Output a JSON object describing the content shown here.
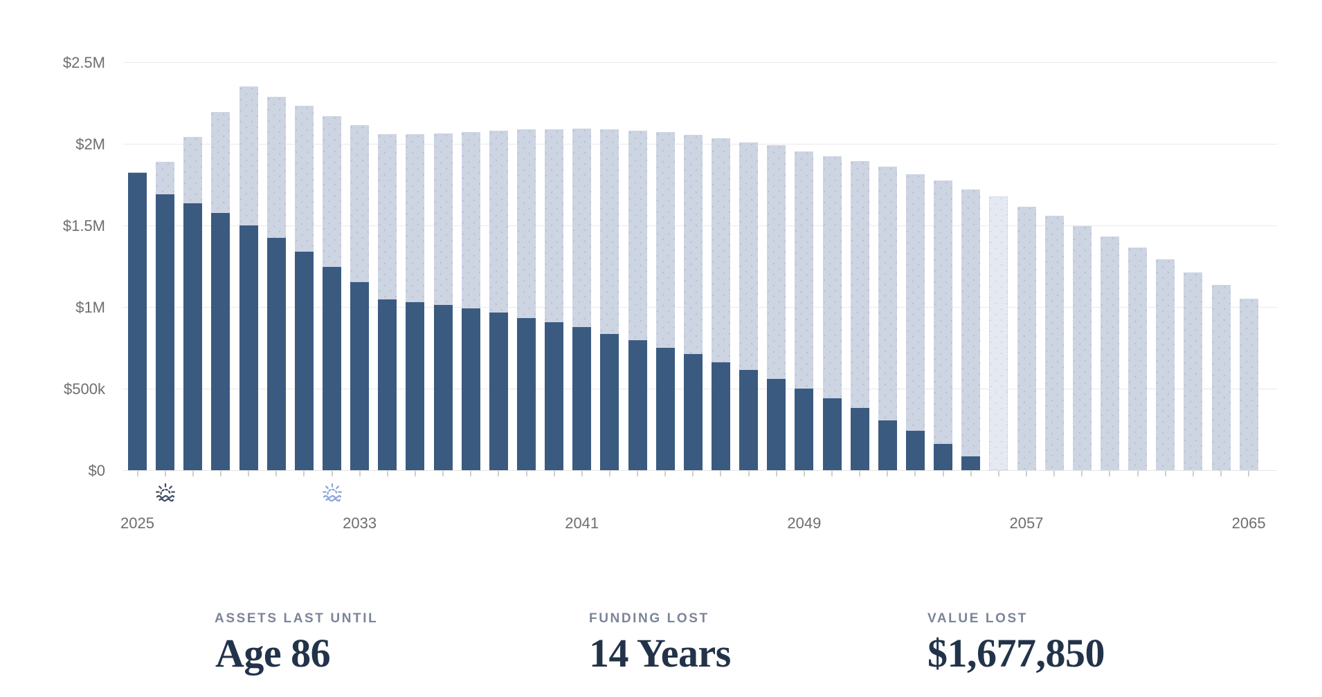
{
  "chart": {
    "y_axis": {
      "ticks": [
        {
          "label": "$2.5M",
          "value": 2500000
        },
        {
          "label": "$2M",
          "value": 2000000
        },
        {
          "label": "$1.5M",
          "value": 1500000
        },
        {
          "label": "$1M",
          "value": 1000000
        },
        {
          "label": "$500k",
          "value": 500000
        },
        {
          "label": "$0",
          "value": 0
        }
      ]
    },
    "x_axis": {
      "labeled_years": [
        {
          "label": "2025",
          "year": 2025
        },
        {
          "label": "2033",
          "year": 2033
        },
        {
          "label": "2041",
          "year": 2041
        },
        {
          "label": "2049",
          "year": 2049
        },
        {
          "label": "2057",
          "year": 2057
        },
        {
          "label": "2065",
          "year": 2065
        }
      ]
    },
    "chart_data": {
      "type": "bar",
      "title": "",
      "xlabel": "",
      "ylabel": "",
      "ylim": [
        0,
        2500000
      ],
      "grid": true,
      "legend_position": "none",
      "categories": [
        2025,
        2026,
        2027,
        2028,
        2029,
        2030,
        2031,
        2032,
        2033,
        2034,
        2035,
        2036,
        2037,
        2038,
        2039,
        2040,
        2041,
        2042,
        2043,
        2044,
        2045,
        2046,
        2047,
        2048,
        2049,
        2050,
        2051,
        2052,
        2053,
        2054,
        2055,
        2056,
        2057,
        2058,
        2059,
        2060,
        2061,
        2062,
        2063,
        2064,
        2065
      ],
      "series": [
        {
          "name": "assets-baseline-projection",
          "color": "#cdd4e2",
          "values": [
            1825000,
            1890000,
            2040000,
            2195000,
            2350000,
            2290000,
            2235000,
            2170000,
            2115000,
            2060000,
            2060000,
            2065000,
            2070000,
            2080000,
            2090000,
            2090000,
            2095000,
            2090000,
            2080000,
            2070000,
            2055000,
            2035000,
            2010000,
            1990000,
            1955000,
            1925000,
            1895000,
            1860000,
            1815000,
            1775000,
            1720000,
            1678000,
            1615000,
            1560000,
            1495000,
            1430000,
            1365000,
            1290000,
            1210000,
            1135000,
            1050000
          ]
        },
        {
          "name": "assets-reduced-projection",
          "color": "#3b5a7f",
          "values": [
            1820000,
            1690000,
            1635000,
            1575000,
            1500000,
            1425000,
            1340000,
            1245000,
            1150000,
            1045000,
            1030000,
            1010000,
            990000,
            965000,
            930000,
            905000,
            875000,
            835000,
            795000,
            750000,
            710000,
            660000,
            615000,
            560000,
            500000,
            440000,
            380000,
            305000,
            240000,
            160000,
            85000,
            null,
            null,
            null,
            null,
            null,
            null,
            null,
            null,
            null,
            null
          ]
        }
      ],
      "highlight_year": 2056
    },
    "events": [
      {
        "name": "sunrise-icon-2026",
        "icon": "sunrise-icon",
        "year": 2026,
        "color": "#3e4d61"
      },
      {
        "name": "sunrise-icon-2032",
        "icon": "sunrise-icon",
        "year": 2032,
        "color": "#8ba4da"
      }
    ]
  },
  "stats": [
    {
      "label": "ASSETS LAST UNTIL",
      "value": "Age 86"
    },
    {
      "label": "FUNDING LOST",
      "value": "14 Years"
    },
    {
      "label": "VALUE LOST",
      "value": "$1,677,850"
    }
  ],
  "colors": {
    "bar_dark": "#3b5a7f",
    "bar_light": "#cdd4e2",
    "bar_highlight": "#e4e9f2",
    "gridline": "#e9e9e9",
    "axis_text": "#6e6e6e",
    "stat_label": "#7b8498",
    "stat_value": "#223349"
  }
}
